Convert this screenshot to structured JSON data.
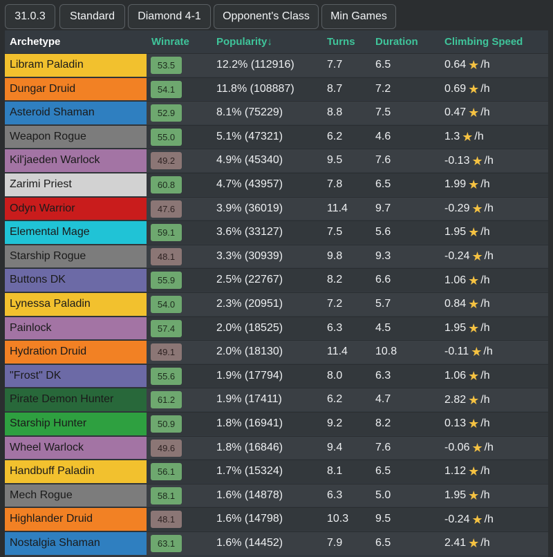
{
  "filters": [
    "31.0.3",
    "Standard",
    "Diamond 4-1",
    "Opponent's Class",
    "Min Games"
  ],
  "headers": {
    "archetype": "Archetype",
    "winrate": "Winrate",
    "popularity": "Popularity↓",
    "turns": "Turns",
    "duration": "Duration",
    "climbing": "Climbing Speed"
  },
  "climb_unit": "/h",
  "colors": {
    "paladin": "#f2c12e",
    "druid": "#f28124",
    "shaman": "#2f7fc0",
    "rogue": "#7c7c7c",
    "warlock": "#a374a4",
    "priest": "#d2d2d2",
    "warrior": "#c91c1c",
    "mage": "#20c3d6",
    "dk": "#6c6aa6",
    "demonhunter": "#28683a",
    "hunter": "#2ea040",
    "winrate_good": "#6ea86f",
    "winrate_bad": "#8b7675",
    "header_accent": "#3fc49a"
  },
  "rows": [
    {
      "archetype": "Libram Paladin",
      "cls": "paladin",
      "winrate": "53.5",
      "popularity": "12.2% (112916)",
      "turns": "7.7",
      "duration": "6.5",
      "climbing": "0.64"
    },
    {
      "archetype": "Dungar Druid",
      "cls": "druid",
      "winrate": "54.1",
      "popularity": "11.8% (108887)",
      "turns": "8.7",
      "duration": "7.2",
      "climbing": "0.69"
    },
    {
      "archetype": "Asteroid Shaman",
      "cls": "shaman",
      "winrate": "52.9",
      "popularity": "8.1% (75229)",
      "turns": "8.8",
      "duration": "7.5",
      "climbing": "0.47"
    },
    {
      "archetype": "Weapon Rogue",
      "cls": "rogue",
      "winrate": "55.0",
      "popularity": "5.1% (47321)",
      "turns": "6.2",
      "duration": "4.6",
      "climbing": "1.3"
    },
    {
      "archetype": "Kil'jaeden Warlock",
      "cls": "warlock",
      "winrate": "49.2",
      "popularity": "4.9% (45340)",
      "turns": "9.5",
      "duration": "7.6",
      "climbing": "-0.13"
    },
    {
      "archetype": "Zarimi Priest",
      "cls": "priest",
      "winrate": "60.8",
      "popularity": "4.7% (43957)",
      "turns": "7.8",
      "duration": "6.5",
      "climbing": "1.99"
    },
    {
      "archetype": "Odyn Warrior",
      "cls": "warrior",
      "winrate": "47.6",
      "popularity": "3.9% (36019)",
      "turns": "11.4",
      "duration": "9.7",
      "climbing": "-0.29"
    },
    {
      "archetype": "Elemental Mage",
      "cls": "mage",
      "winrate": "59.1",
      "popularity": "3.6% (33127)",
      "turns": "7.5",
      "duration": "5.6",
      "climbing": "1.95"
    },
    {
      "archetype": "Starship Rogue",
      "cls": "rogue",
      "winrate": "48.1",
      "popularity": "3.3% (30939)",
      "turns": "9.8",
      "duration": "9.3",
      "climbing": "-0.24"
    },
    {
      "archetype": "Buttons DK",
      "cls": "dk",
      "winrate": "55.9",
      "popularity": "2.5% (22767)",
      "turns": "8.2",
      "duration": "6.6",
      "climbing": "1.06"
    },
    {
      "archetype": "Lynessa Paladin",
      "cls": "paladin",
      "winrate": "54.0",
      "popularity": "2.3% (20951)",
      "turns": "7.2",
      "duration": "5.7",
      "climbing": "0.84"
    },
    {
      "archetype": "Painlock",
      "cls": "warlock",
      "winrate": "57.4",
      "popularity": "2.0% (18525)",
      "turns": "6.3",
      "duration": "4.5",
      "climbing": "1.95"
    },
    {
      "archetype": "Hydration Druid",
      "cls": "druid",
      "winrate": "49.1",
      "popularity": "2.0% (18130)",
      "turns": "11.4",
      "duration": "10.8",
      "climbing": "-0.11"
    },
    {
      "archetype": "\"Frost\" DK",
      "cls": "dk",
      "winrate": "55.6",
      "popularity": "1.9% (17794)",
      "turns": "8.0",
      "duration": "6.3",
      "climbing": "1.06"
    },
    {
      "archetype": "Pirate Demon Hunter",
      "cls": "demonhunter",
      "winrate": "61.2",
      "popularity": "1.9% (17411)",
      "turns": "6.2",
      "duration": "4.7",
      "climbing": "2.82"
    },
    {
      "archetype": "Starship Hunter",
      "cls": "hunter",
      "winrate": "50.9",
      "popularity": "1.8% (16941)",
      "turns": "9.2",
      "duration": "8.2",
      "climbing": "0.13"
    },
    {
      "archetype": "Wheel Warlock",
      "cls": "warlock",
      "winrate": "49.6",
      "popularity": "1.8% (16846)",
      "turns": "9.4",
      "duration": "7.6",
      "climbing": "-0.06"
    },
    {
      "archetype": "Handbuff Paladin",
      "cls": "paladin",
      "winrate": "56.1",
      "popularity": "1.7% (15324)",
      "turns": "8.1",
      "duration": "6.5",
      "climbing": "1.12"
    },
    {
      "archetype": "Mech Rogue",
      "cls": "rogue",
      "winrate": "58.1",
      "popularity": "1.6% (14878)",
      "turns": "6.3",
      "duration": "5.0",
      "climbing": "1.95"
    },
    {
      "archetype": "Highlander Druid",
      "cls": "druid",
      "winrate": "48.1",
      "popularity": "1.6% (14798)",
      "turns": "10.3",
      "duration": "9.5",
      "climbing": "-0.24"
    },
    {
      "archetype": "Nostalgia Shaman",
      "cls": "shaman",
      "winrate": "63.1",
      "popularity": "1.6% (14452)",
      "turns": "7.9",
      "duration": "6.5",
      "climbing": "2.41"
    }
  ]
}
